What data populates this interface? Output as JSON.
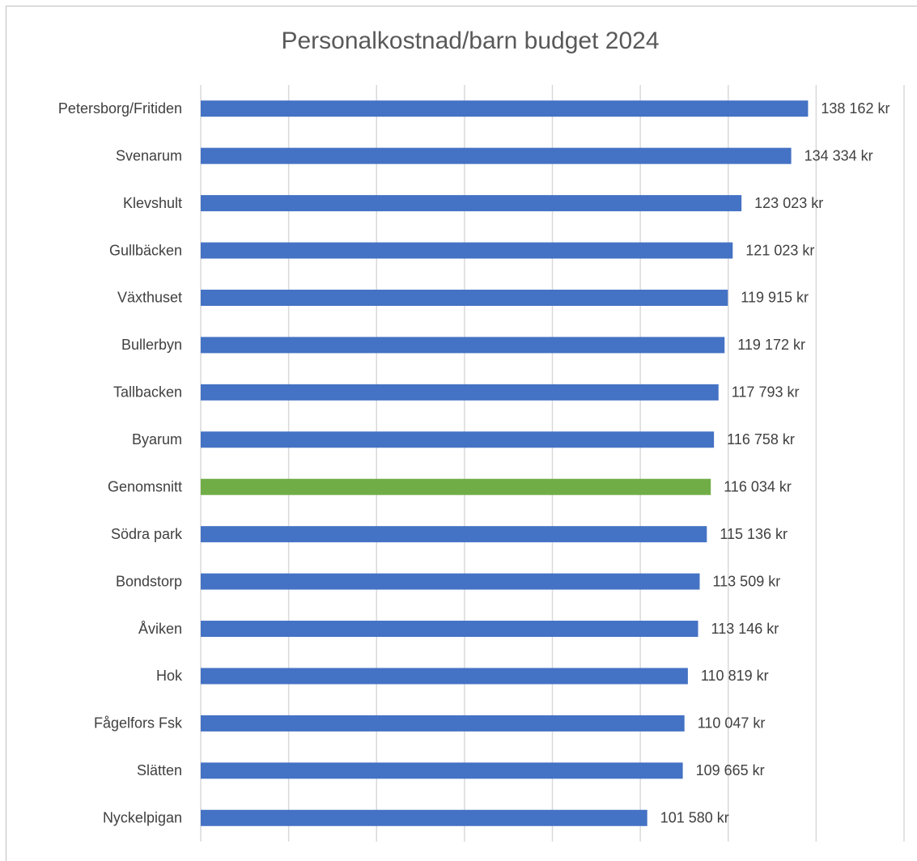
{
  "chart_data": {
    "type": "barh",
    "title": "Personalkostnad/barn budget 2024",
    "categories": [
      "Petersborg/Fritiden",
      "Svenarum",
      "Klevshult",
      "Gullbäcken",
      "Växthuset",
      "Bullerbyn",
      "Tallbacken",
      "Byarum",
      "Genomsnitt",
      "Södra park",
      "Bondstorp",
      "Åviken",
      "Hok",
      "Fågelfors Fsk",
      "Slätten",
      "Nyckelpigan"
    ],
    "values": [
      138162,
      134334,
      123023,
      121023,
      119915,
      119172,
      117793,
      116758,
      116034,
      115136,
      113509,
      113146,
      110819,
      110047,
      109665,
      101580
    ],
    "value_labels": [
      "138 162 kr",
      "134 334 kr",
      "123 023 kr",
      "121 023 kr",
      "119 915 kr",
      "119 172 kr",
      "117 793 kr",
      "116 758 kr",
      "116 034 kr",
      "115 136 kr",
      "113 509 kr",
      "113 146 kr",
      "110 819 kr",
      "110 047 kr",
      "109 665 kr",
      "101 580 kr"
    ],
    "colors": [
      "#4472c4",
      "#4472c4",
      "#4472c4",
      "#4472c4",
      "#4472c4",
      "#4472c4",
      "#4472c4",
      "#4472c4",
      "#70ad47",
      "#4472c4",
      "#4472c4",
      "#4472c4",
      "#4472c4",
      "#4472c4",
      "#4472c4",
      "#4472c4"
    ],
    "xlim": [
      0,
      160000
    ],
    "xticks": [
      0,
      20000,
      40000,
      60000,
      80000,
      100000,
      120000,
      140000,
      160000
    ],
    "grid": true
  }
}
